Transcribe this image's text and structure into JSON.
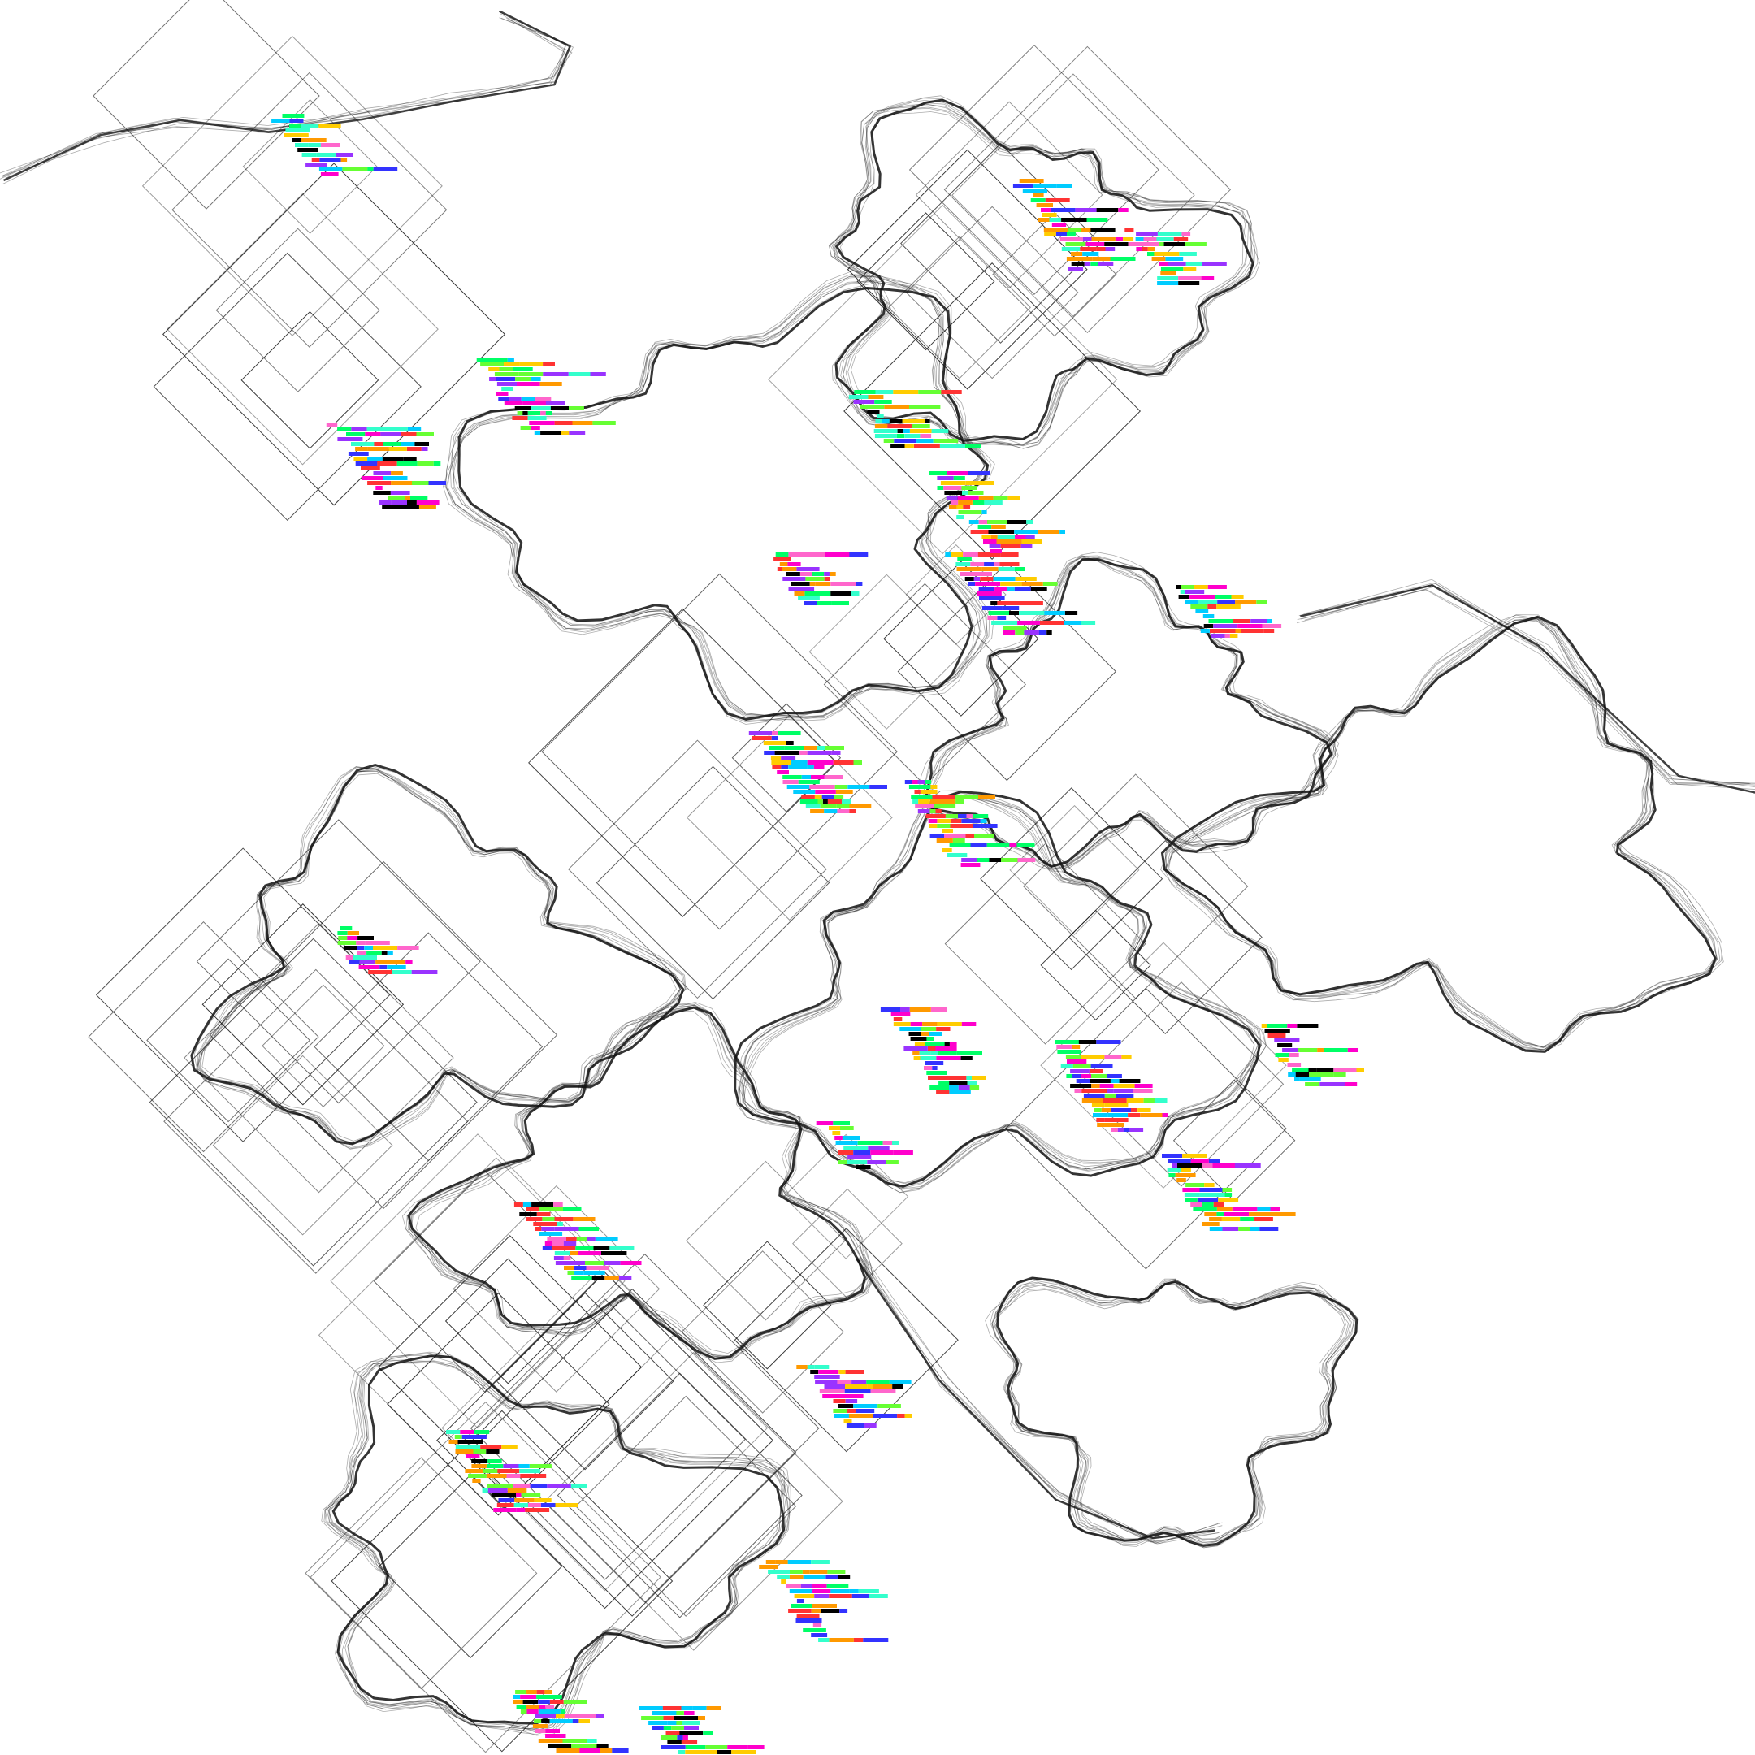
{
  "artwork": {
    "background": "#ffffff",
    "ink": "#111111",
    "palette": [
      "#ff00cc",
      "#00ff66",
      "#3333ff",
      "#00ccff",
      "#ffcc00",
      "#ff3333",
      "#9933ff",
      "#66ff33",
      "#ff66cc",
      "#33ffcc",
      "#000000",
      "#ff9900"
    ]
  }
}
